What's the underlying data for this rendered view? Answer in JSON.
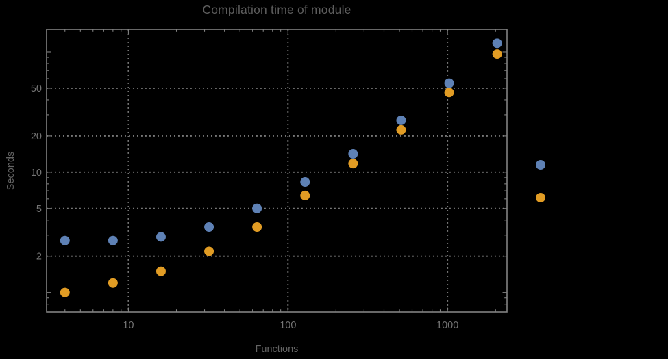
{
  "chart_data": {
    "type": "scatter",
    "title": "Compilation time of module",
    "xlabel": "Functions",
    "ylabel": "Seconds",
    "x_scale": "log",
    "y_scale": "log",
    "grid": "dotted",
    "xlim": [
      3.07,
      2360
    ],
    "ylim": [
      0.69,
      154
    ],
    "x_tick_values": [
      10,
      100,
      1000
    ],
    "x_tick_labels": [
      "10",
      "100",
      "1000"
    ],
    "y_tick_values": [
      2,
      5,
      10,
      20,
      50
    ],
    "y_tick_labels": [
      "2",
      "5",
      "10",
      "20",
      "50"
    ],
    "y_unlabeled_major_ticks": [
      1,
      100
    ],
    "x": [
      4,
      8,
      16,
      32,
      64,
      128,
      256,
      512,
      1024,
      2048
    ],
    "series": [
      {
        "name": "series-1-blue",
        "color": "#5E81B5",
        "values": [
          2.7,
          2.7,
          2.9,
          3.5,
          5.0,
          8.3,
          14.2,
          27,
          55,
          118
        ]
      },
      {
        "name": "series-2-orange",
        "color": "#E19C24",
        "values": [
          1.0,
          1.2,
          1.5,
          2.2,
          3.5,
          6.4,
          11.8,
          22.5,
          46,
          96
        ]
      }
    ],
    "legend": {
      "position": "right-of-plot",
      "markers": [
        {
          "series": "series-1-blue",
          "color": "#5E81B5"
        },
        {
          "series": "series-2-orange",
          "color": "#E19C24"
        }
      ]
    }
  },
  "colors": {
    "background": "#000000",
    "title_text": "#5d5d5d",
    "axis_label_text": "#646464",
    "tick_label_text": "#747474",
    "frame": "#828282",
    "grid": "#787878"
  }
}
